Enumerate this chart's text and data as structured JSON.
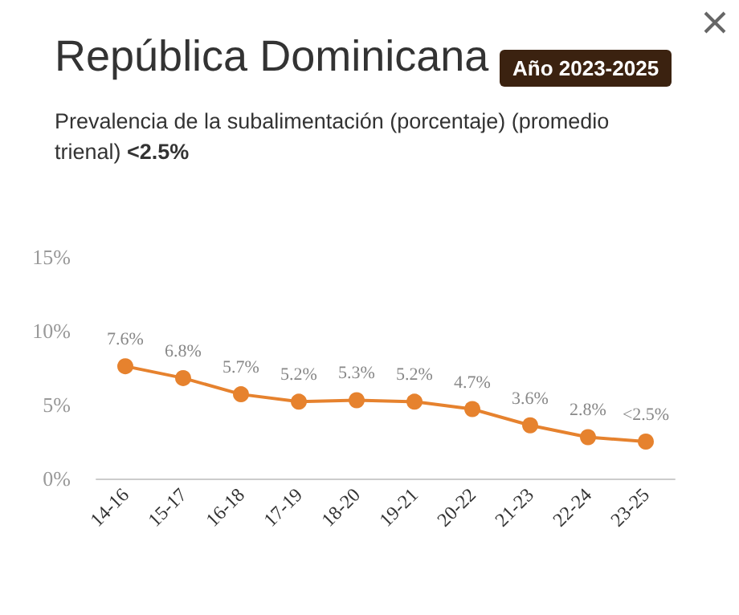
{
  "chart_data": {
    "type": "line",
    "title": "República Dominicana",
    "subtitle": "Prevalencia de la subalimentación (porcentaje) (promedio trienal)",
    "annotations": [
      "Año 2023-2025",
      "<2.5%"
    ],
    "categories": [
      "14-16",
      "15-17",
      "16-18",
      "17-19",
      "18-20",
      "19-21",
      "20-22",
      "21-23",
      "22-24",
      "23-25"
    ],
    "series": [
      {
        "color": "#e6822e",
        "values": [
          7.6,
          6.8,
          5.7,
          5.2,
          5.3,
          5.2,
          4.7,
          3.6,
          2.8,
          2.5
        ],
        "value_labels": [
          "7.6%",
          "6.8%",
          "5.7%",
          "5.2%",
          "5.3%",
          "5.2%",
          "4.7%",
          "3.6%",
          "2.8%",
          "<2.5%"
        ]
      }
    ],
    "ylim": [
      0,
      15
    ],
    "yticks": [
      {
        "value": 0,
        "label": "0%"
      },
      {
        "value": 5,
        "label": "5%"
      },
      {
        "value": 10,
        "label": "10%"
      },
      {
        "value": 15,
        "label": "15%"
      }
    ],
    "grid": false,
    "marker": "circle",
    "line_style": "solid"
  }
}
